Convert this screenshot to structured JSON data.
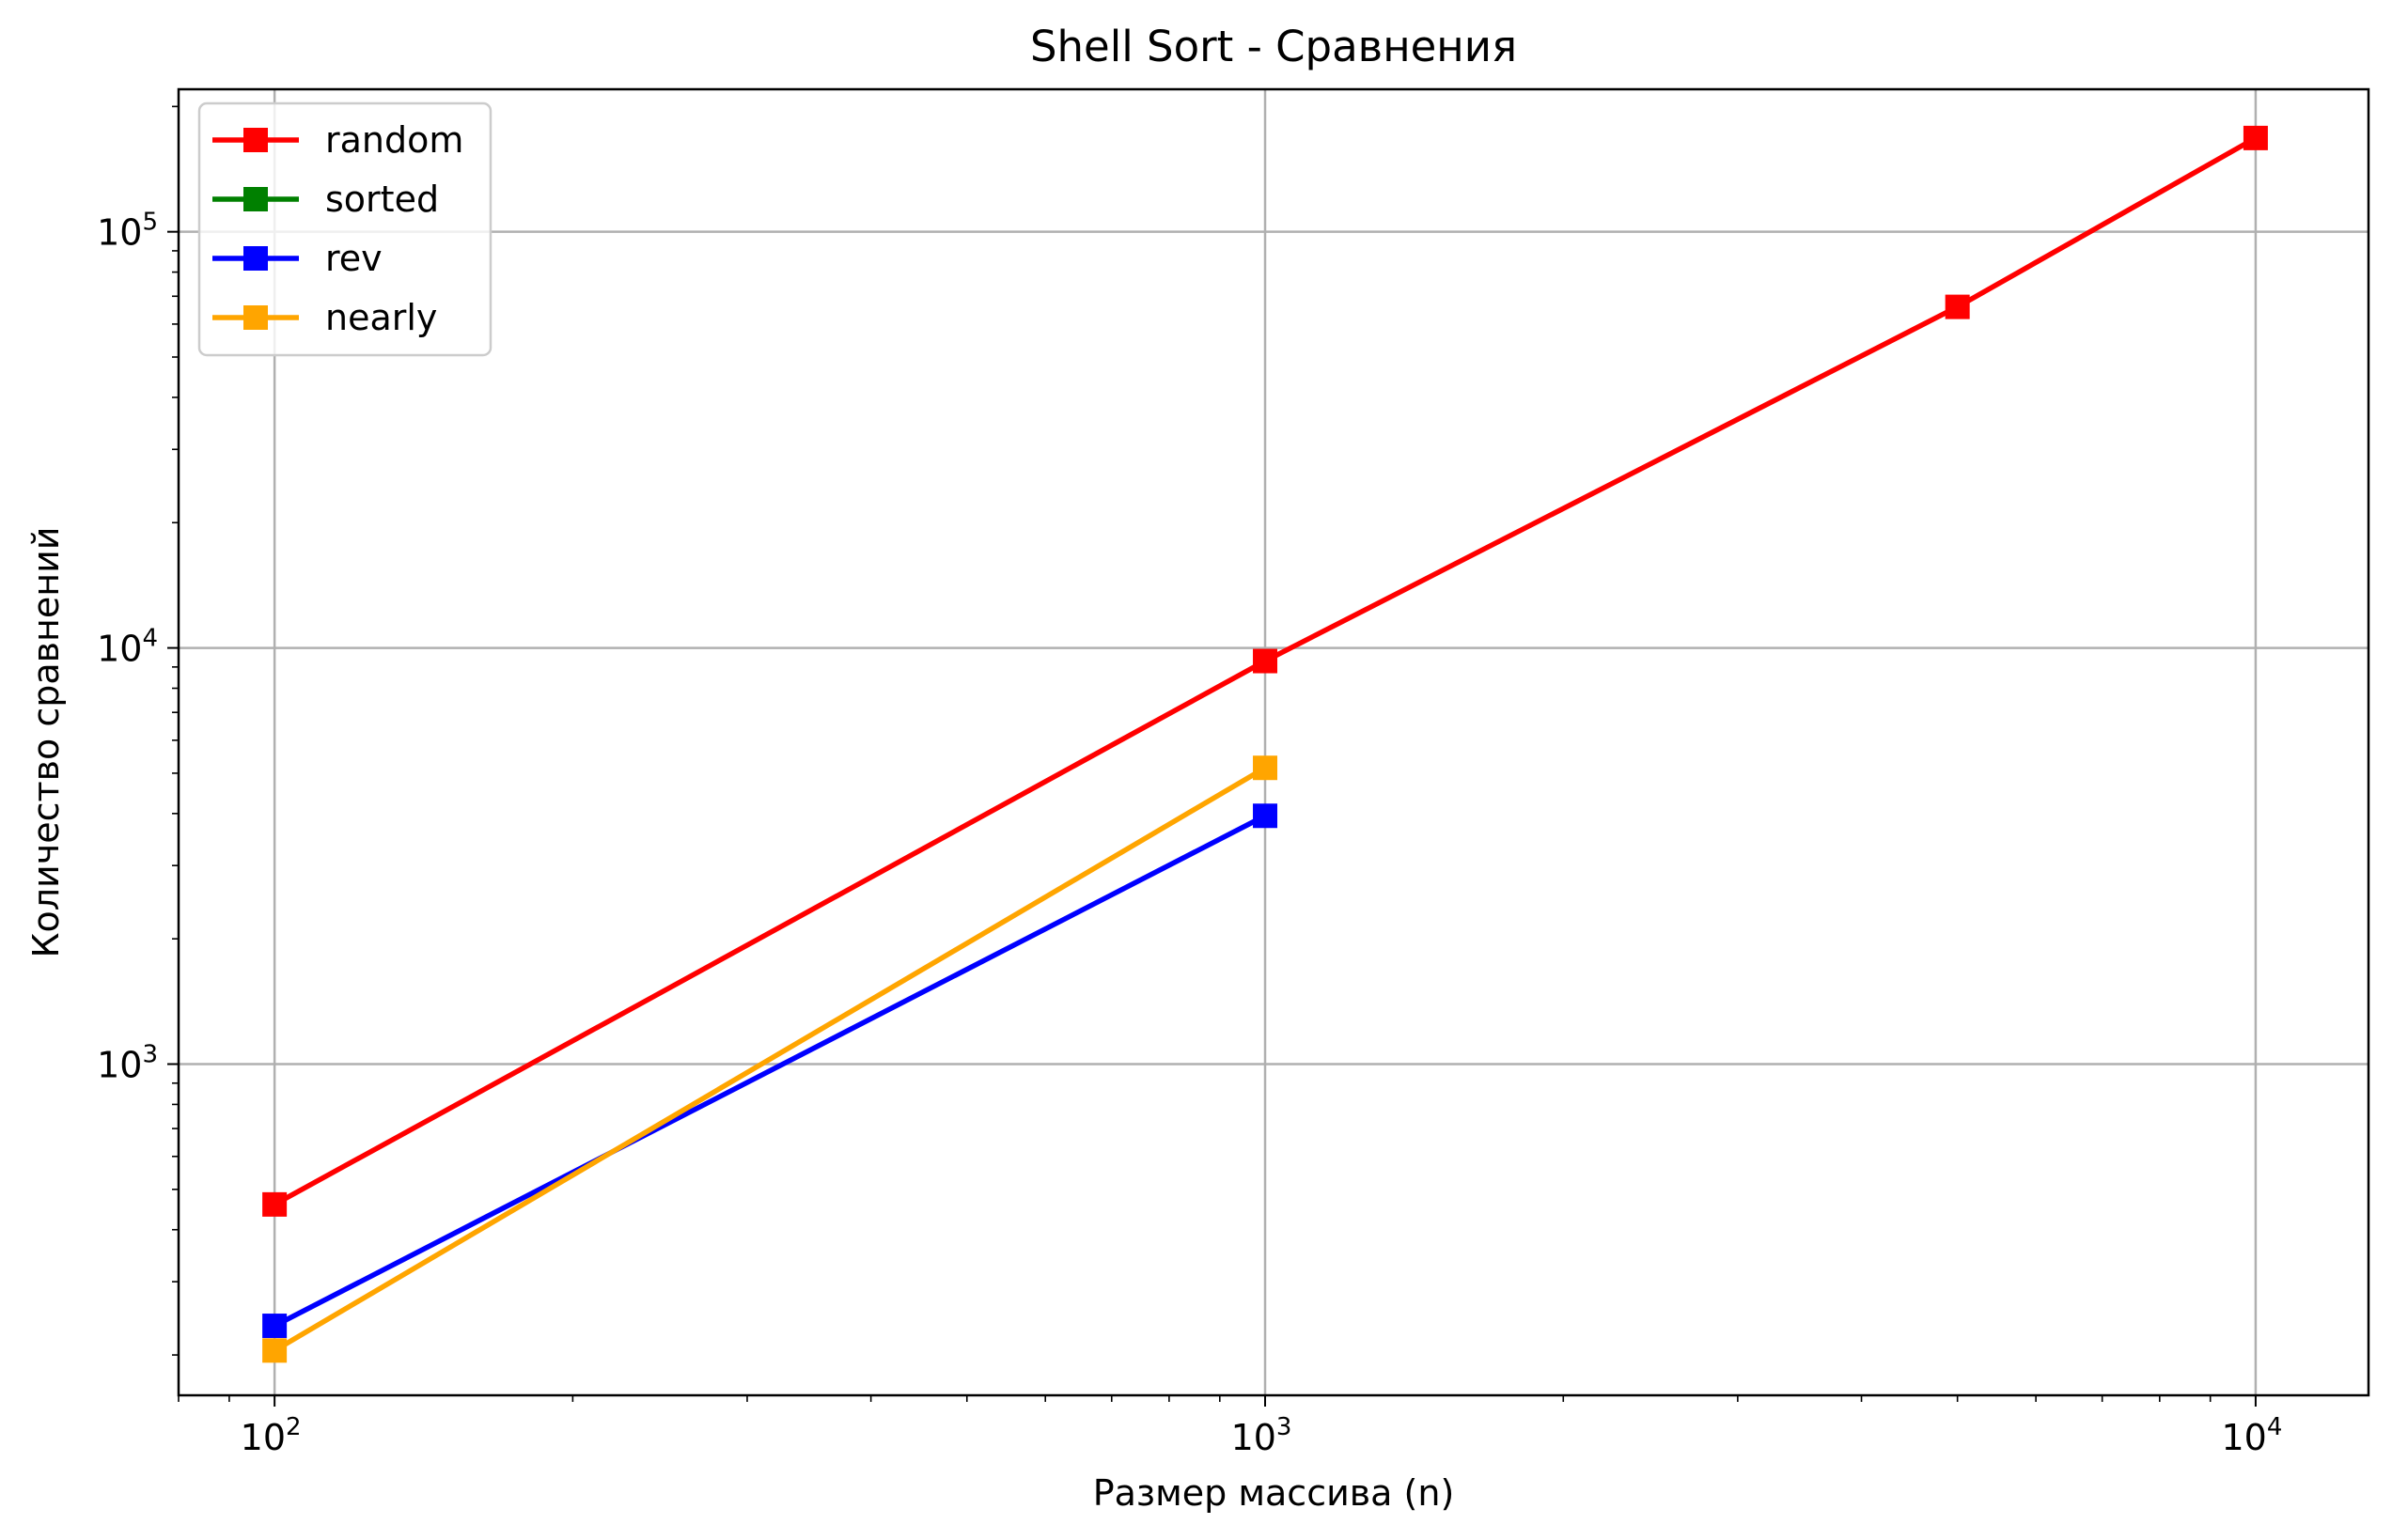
{
  "chart_data": {
    "type": "line",
    "title": "Shell Sort - Сравнения",
    "xlabel": "Размер массива (n)",
    "ylabel": "Количество сравнений",
    "xscale": "log",
    "yscale": "log",
    "xlim": [
      80,
      13000
    ],
    "ylim": [
      160,
      220000
    ],
    "grid": true,
    "legend_position": "top-left",
    "x_ticks": [
      {
        "value": 100,
        "base": "10",
        "exp": "2"
      },
      {
        "value": 1000,
        "base": "10",
        "exp": "3"
      },
      {
        "value": 10000,
        "base": "10",
        "exp": "4"
      }
    ],
    "y_ticks": [
      {
        "value": 1000,
        "base": "10",
        "exp": "3"
      },
      {
        "value": 10000,
        "base": "10",
        "exp": "4"
      },
      {
        "value": 100000,
        "base": "10",
        "exp": "5"
      }
    ],
    "series": [
      {
        "name": "random",
        "color": "#ff0000",
        "x": [
          100,
          1000,
          5000,
          10000
        ],
        "y": [
          460,
          9300,
          66000,
          168000
        ]
      },
      {
        "name": "sorted",
        "color": "#008000",
        "x": [],
        "y": []
      },
      {
        "name": "rev",
        "color": "#0000ff",
        "x": [
          100,
          1000
        ],
        "y": [
          235,
          3950
        ]
      },
      {
        "name": "nearly",
        "color": "#ffa500",
        "x": [
          100,
          1000
        ],
        "y": [
          205,
          5150
        ]
      }
    ]
  }
}
